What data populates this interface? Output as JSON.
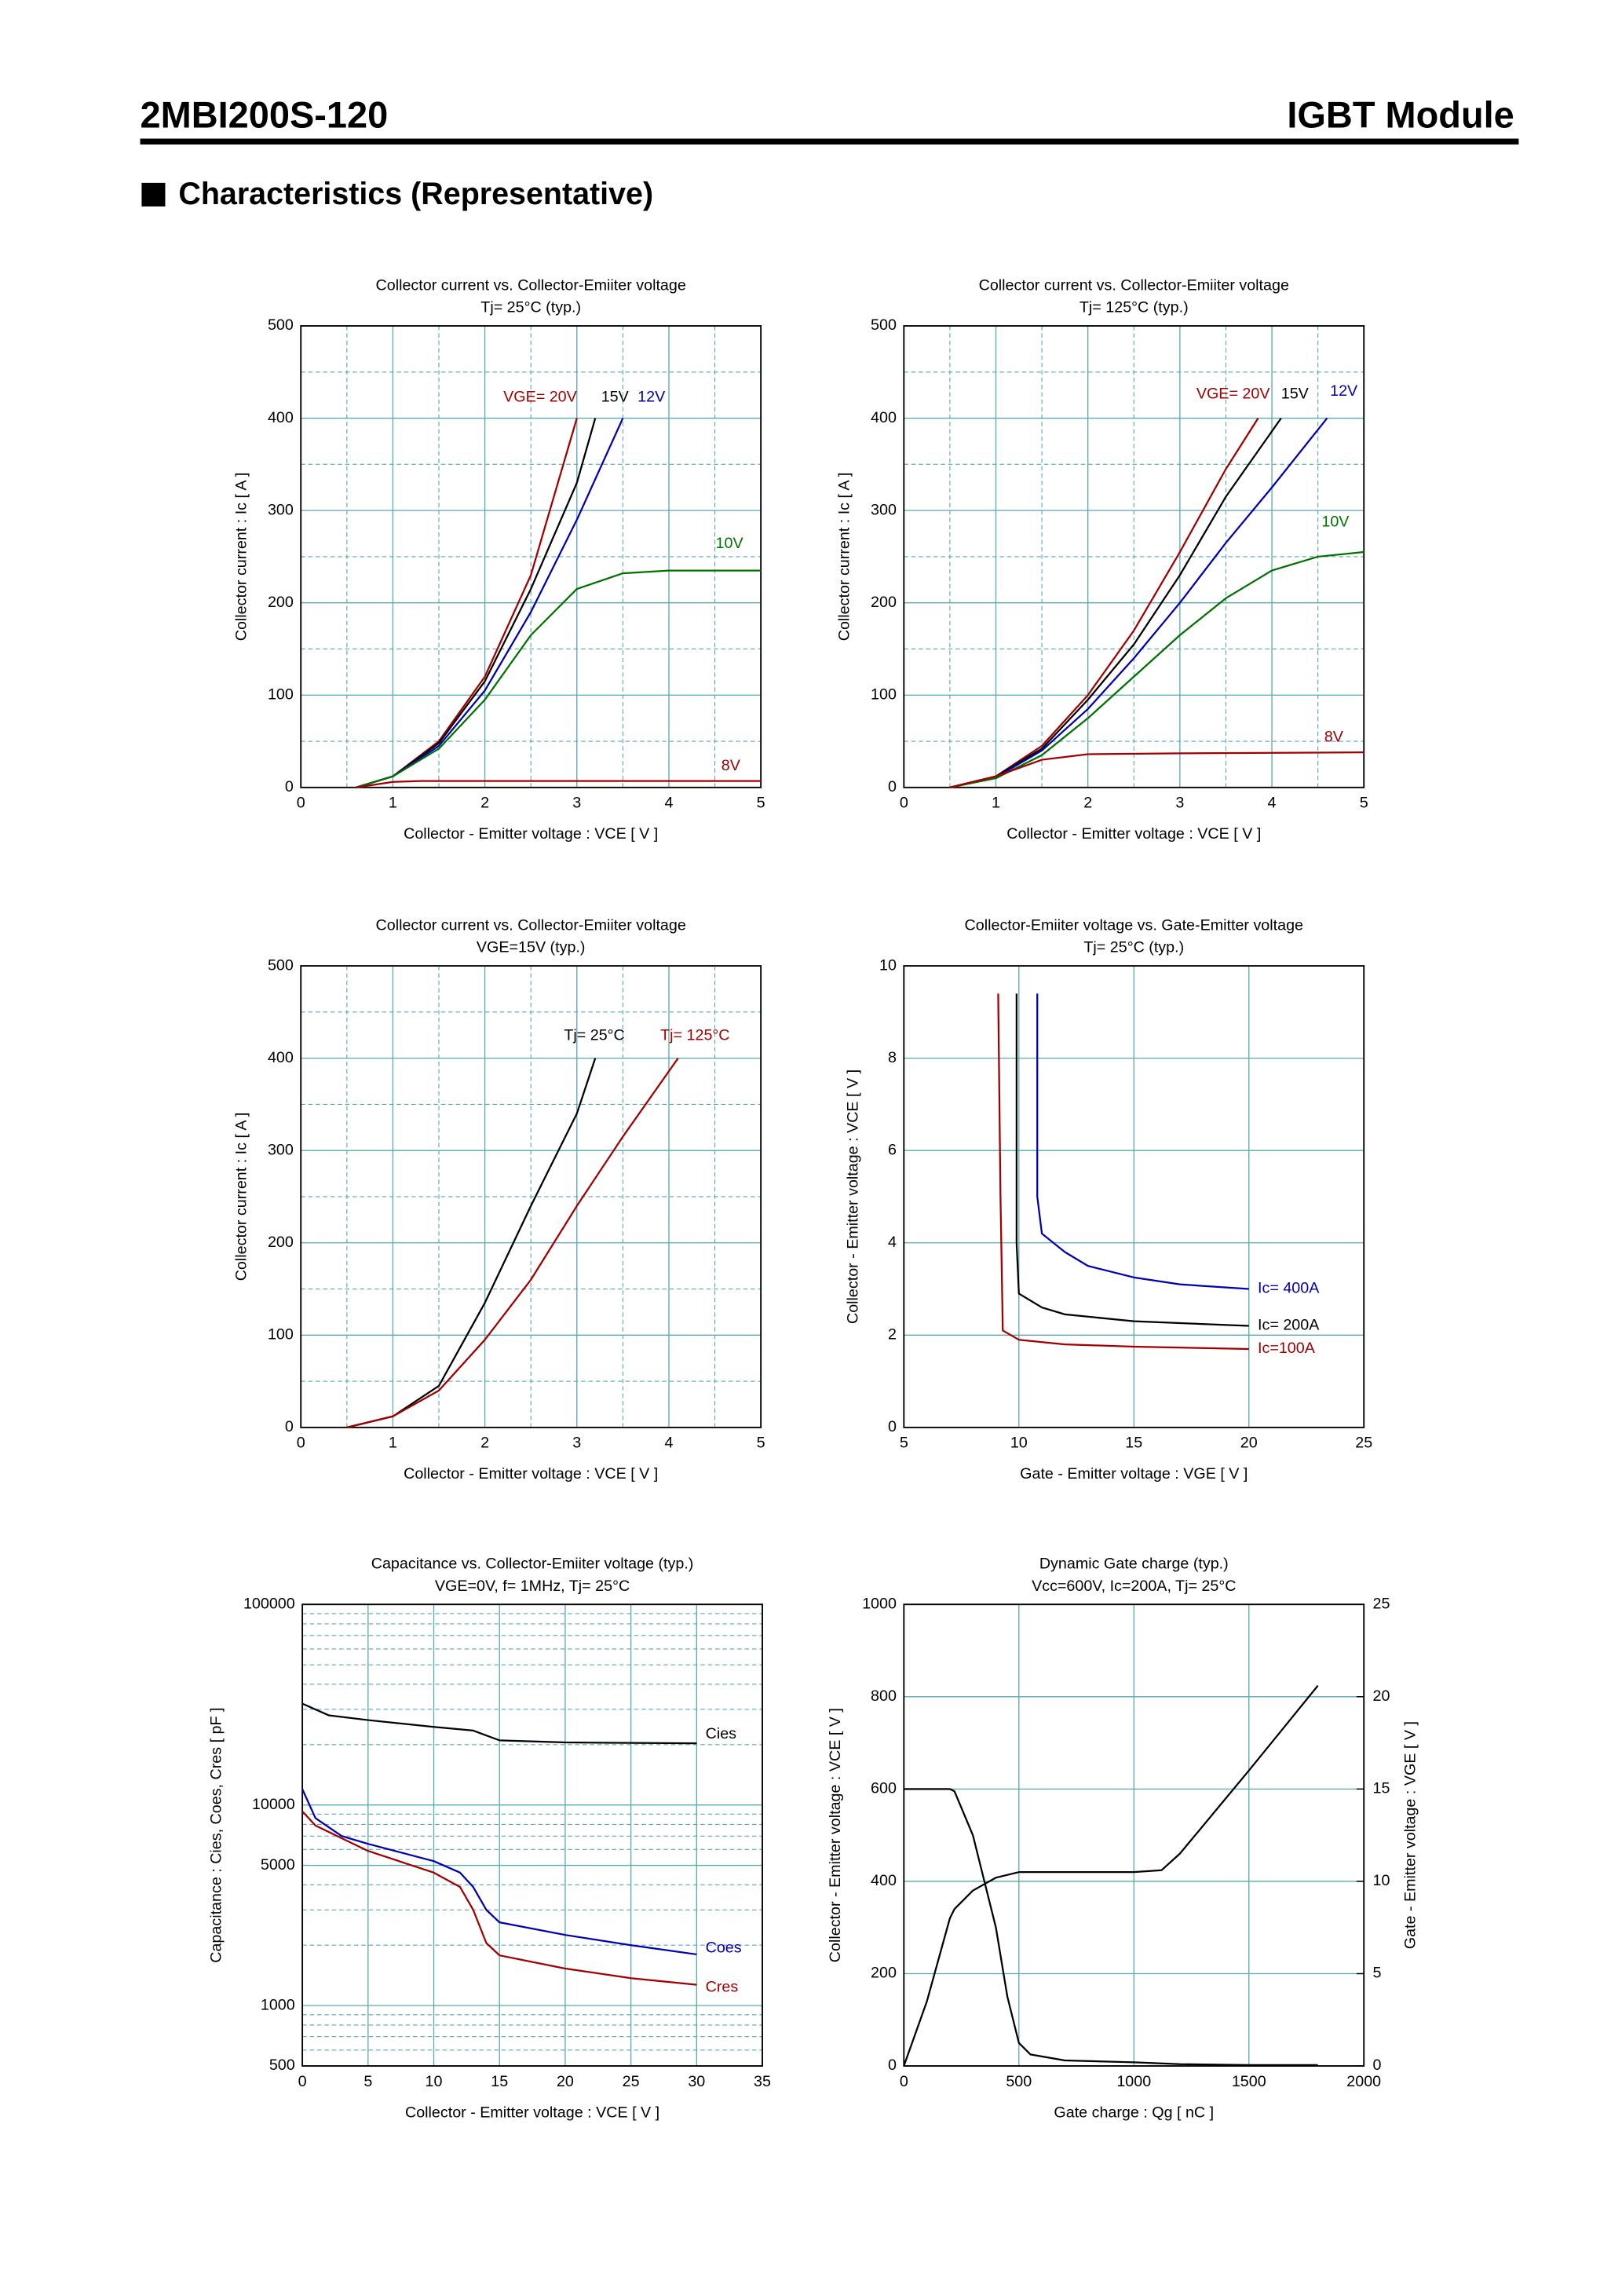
{
  "header": {
    "part": "2MBI200S-120",
    "product": "IGBT Module",
    "section": "Characteristics (Representative)"
  },
  "chart_data": [
    {
      "type": "line",
      "title": "Collector current  vs.  Collector-Emiiter voltage",
      "subtitle": "Tj= 25°C  (typ.)",
      "x_label": "Collector - Emitter voltage  :  VCE  [ V ]",
      "y_label": "Collector current  :  Ic  [ A ]",
      "xlim": [
        0,
        5
      ],
      "xticks": [
        0,
        1,
        2,
        3,
        4,
        5
      ],
      "ylim": [
        0,
        500
      ],
      "yticks": [
        0,
        100,
        200,
        300,
        400,
        500
      ],
      "xminor": [
        0.5,
        1.5,
        2.5,
        3.5,
        4.5
      ],
      "yminor": [
        50,
        150,
        250,
        350,
        450
      ],
      "grid": true,
      "series": [
        {
          "name": "VGE= 20V",
          "color": "#a00000",
          "x": [
            0.6,
            1,
            1.5,
            2,
            2.5,
            3
          ],
          "values": [
            0,
            12,
            50,
            120,
            230,
            400
          ]
        },
        {
          "name": "15V",
          "color": "#000000",
          "x": [
            0.6,
            1,
            1.5,
            2,
            2.5,
            3,
            3.2
          ],
          "values": [
            0,
            12,
            48,
            115,
            215,
            330,
            400
          ]
        },
        {
          "name": "12V",
          "color": "#0000b0",
          "x": [
            0.6,
            1,
            1.5,
            2,
            2.5,
            3,
            3.5
          ],
          "values": [
            0,
            12,
            45,
            105,
            190,
            290,
            400
          ]
        },
        {
          "name": "10V",
          "color": "#007000",
          "x": [
            0.6,
            1,
            1.5,
            2,
            2.5,
            3,
            3.5,
            4,
            5
          ],
          "values": [
            0,
            12,
            42,
            95,
            165,
            215,
            232,
            235,
            235
          ]
        },
        {
          "name": "8V",
          "color": "#a00000",
          "x": [
            0.6,
            1,
            1.3,
            5
          ],
          "values": [
            0,
            6,
            7,
            7
          ]
        }
      ]
    },
    {
      "type": "line",
      "title": "Collector current  vs.  Collector-Emiiter voltage",
      "subtitle": "Tj= 125°C  (typ.)",
      "x_label": "Collector - Emitter voltage  :  VCE  [ V ]",
      "y_label": "Collector current  :  Ic  [ A ]",
      "xlim": [
        0,
        5
      ],
      "xticks": [
        0,
        1,
        2,
        3,
        4,
        5
      ],
      "ylim": [
        0,
        500
      ],
      "yticks": [
        0,
        100,
        200,
        300,
        400,
        500
      ],
      "xminor": [
        0.5,
        1.5,
        2.5,
        3.5,
        4.5
      ],
      "yminor": [
        50,
        150,
        250,
        350,
        450
      ],
      "grid": true,
      "series": [
        {
          "name": "VGE= 20V",
          "color": "#a00000",
          "x": [
            0.5,
            1,
            1.5,
            2,
            2.5,
            3,
            3.5,
            3.85
          ],
          "values": [
            0,
            12,
            45,
            100,
            170,
            255,
            345,
            400
          ]
        },
        {
          "name": "15V",
          "color": "#000000",
          "x": [
            0.5,
            1,
            1.5,
            2,
            2.5,
            3,
            3.5,
            4.1
          ],
          "values": [
            0,
            12,
            42,
            95,
            155,
            230,
            315,
            400
          ]
        },
        {
          "name": "12V",
          "color": "#0000b0",
          "x": [
            0.5,
            1,
            1.5,
            2,
            2.5,
            3,
            3.5,
            4,
            4.6
          ],
          "values": [
            0,
            11,
            40,
            85,
            140,
            200,
            265,
            325,
            400
          ]
        },
        {
          "name": "10V",
          "color": "#007000",
          "x": [
            0.5,
            1,
            1.5,
            2,
            2.5,
            3,
            3.5,
            4,
            4.5,
            5
          ],
          "values": [
            0,
            10,
            35,
            75,
            120,
            165,
            205,
            235,
            250,
            255
          ]
        },
        {
          "name": "8V",
          "color": "#a00000",
          "x": [
            0.5,
            1,
            1.5,
            2,
            3,
            5
          ],
          "values": [
            0,
            12,
            30,
            36,
            37,
            38
          ]
        }
      ]
    },
    {
      "type": "line",
      "title": "Collector current  vs.  Collector-Emiiter voltage",
      "subtitle": "VGE=15V  (typ.)",
      "x_label": "Collector - Emitter voltage  :  VCE  [ V ]",
      "y_label": "Collector current  :  Ic  [ A ]",
      "xlim": [
        0,
        5
      ],
      "xticks": [
        0,
        1,
        2,
        3,
        4,
        5
      ],
      "ylim": [
        0,
        500
      ],
      "yticks": [
        0,
        100,
        200,
        300,
        400,
        500
      ],
      "xminor": [
        0.5,
        1.5,
        2.5,
        3.5,
        4.5
      ],
      "yminor": [
        50,
        150,
        250,
        350,
        450
      ],
      "grid": true,
      "series": [
        {
          "name": "Tj= 25°C",
          "color": "#000000",
          "x": [
            0.5,
            1,
            1.5,
            2,
            2.5,
            3,
            3.2
          ],
          "values": [
            0,
            12,
            45,
            135,
            240,
            340,
            400
          ]
        },
        {
          "name": "Tj= 125°C",
          "color": "#a00000",
          "x": [
            0.5,
            1,
            1.5,
            2,
            2.5,
            3,
            3.5,
            4.1
          ],
          "values": [
            0,
            12,
            40,
            95,
            160,
            240,
            315,
            400
          ]
        }
      ]
    },
    {
      "type": "line",
      "title": "Collector-Emiiter voltage  vs.  Gate-Emitter voltage",
      "subtitle": "Tj= 25°C  (typ.)",
      "x_label": "Gate - Emitter voltage  :  VGE  [ V ]",
      "y_label": "Collector - Emitter voltage  :  VCE  [ V ]",
      "xlim": [
        5,
        25
      ],
      "xticks": [
        5,
        10,
        15,
        20,
        25
      ],
      "ylim": [
        0,
        10
      ],
      "yticks": [
        0,
        2,
        4,
        6,
        8,
        10
      ],
      "grid": true,
      "series": [
        {
          "name": "Ic= 400A",
          "color": "#0000b0",
          "x": [
            10.8,
            10.8,
            11,
            12,
            13,
            15,
            17,
            20
          ],
          "values": [
            9.4,
            5,
            4.2,
            3.8,
            3.5,
            3.25,
            3.1,
            3.0
          ]
        },
        {
          "name": "Ic= 200A",
          "color": "#000000",
          "x": [
            9.9,
            9.9,
            10,
            11,
            12,
            15,
            20
          ],
          "values": [
            9.4,
            4,
            2.9,
            2.6,
            2.45,
            2.3,
            2.2
          ]
        },
        {
          "name": "Ic=100A",
          "color": "#a00000",
          "x": [
            9.1,
            9.2,
            9.3,
            10,
            12,
            15,
            20
          ],
          "values": [
            9.4,
            5,
            2.1,
            1.9,
            1.8,
            1.75,
            1.7
          ]
        }
      ]
    },
    {
      "type": "line",
      "title": "Capacitance  vs.  Collector-Emiiter voltage  (typ.)",
      "subtitle": "VGE=0V,  f= 1MHz,  Tj= 25°C",
      "x_label": "Collector - Emitter voltage  :  VCE  [ V ]",
      "y_label": "Capacitance  :  Cies, Coes, Cres  [ pF ]",
      "xlim": [
        0,
        35
      ],
      "xticks": [
        0,
        5,
        10,
        15,
        20,
        25,
        30,
        35
      ],
      "ylim": [
        500,
        100000
      ],
      "yticks": [
        500,
        1000,
        5000,
        10000,
        100000
      ],
      "yminor": [
        600,
        700,
        800,
        900,
        2000,
        3000,
        4000,
        6000,
        7000,
        8000,
        9000,
        20000,
        30000,
        40000,
        50000,
        60000,
        70000,
        80000,
        90000
      ],
      "ylog": true,
      "grid": true,
      "series": [
        {
          "name": "Cies",
          "color": "#000000",
          "x": [
            0,
            2,
            5,
            10,
            13,
            15,
            20,
            30
          ],
          "values": [
            32000,
            28000,
            26500,
            24500,
            23500,
            21000,
            20500,
            20300
          ]
        },
        {
          "name": "Coes",
          "color": "#0000b0",
          "x": [
            0,
            1,
            3,
            5,
            10,
            12,
            13,
            14,
            15,
            20,
            25,
            30
          ],
          "values": [
            12000,
            8600,
            7000,
            6400,
            5250,
            4600,
            3900,
            3000,
            2600,
            2250,
            2000,
            1800
          ]
        },
        {
          "name": "Cres",
          "color": "#a00000",
          "x": [
            0,
            1,
            5,
            10,
            12,
            13,
            14,
            15,
            20,
            25,
            30
          ],
          "values": [
            9300,
            7900,
            5900,
            4600,
            3900,
            3000,
            2050,
            1780,
            1530,
            1370,
            1270
          ]
        }
      ]
    },
    {
      "type": "line",
      "title": "Dynamic Gate charge  (typ.)",
      "subtitle": "Vcc=600V, Ic=200A, Tj= 25°C",
      "x_label": "Gate charge  :  Qg  [ nC ]",
      "y_label": "Collector - Emitter voltage  :  VCE  [ V ]",
      "y2_label": "Gate - Emitter voltage  :  VGE  [ V ]",
      "xlim": [
        0,
        2000
      ],
      "xticks": [
        0,
        500,
        1000,
        1500,
        2000
      ],
      "ylim": [
        0,
        1000
      ],
      "yticks": [
        0,
        200,
        400,
        600,
        800,
        1000
      ],
      "y2lim": [
        0,
        25
      ],
      "y2ticks": [
        0,
        5,
        10,
        15,
        20,
        25
      ],
      "grid": true,
      "series": [
        {
          "color": "#000000",
          "x": [
            0,
            200,
            220,
            300,
            400,
            450,
            500,
            550,
            700,
            1000,
            1200,
            1500,
            1800
          ],
          "values": [
            600,
            600,
            595,
            500,
            300,
            150,
            50,
            25,
            12,
            8,
            4,
            2,
            2
          ]
        },
        {
          "color": "#000000",
          "axis": "y2",
          "x": [
            0,
            100,
            200,
            220,
            300,
            400,
            500,
            1000,
            1120,
            1200,
            1500,
            1800
          ],
          "values": [
            0,
            3.5,
            8,
            8.5,
            9.5,
            10.2,
            10.5,
            10.5,
            10.6,
            11.5,
            16,
            20.6
          ]
        }
      ]
    }
  ]
}
